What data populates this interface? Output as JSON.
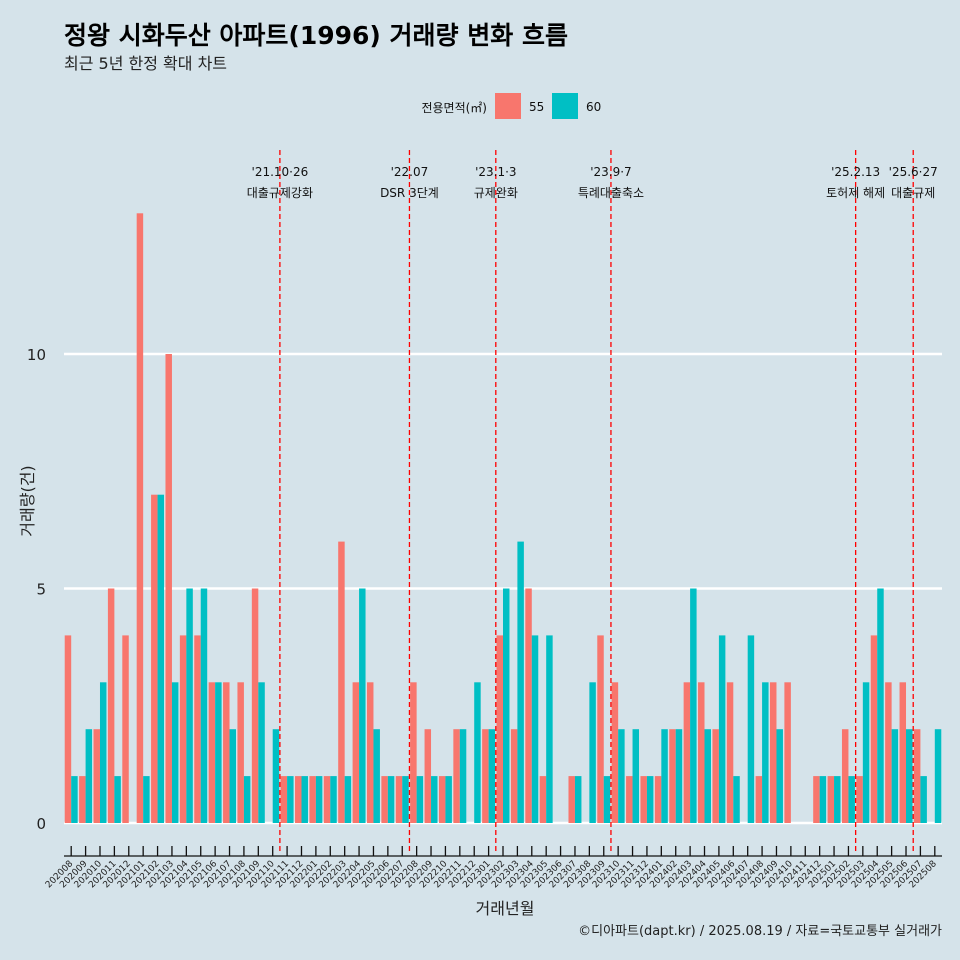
{
  "chart_data": {
    "type": "bar",
    "title": "정왕 시화두산 아파트(1996) 거래량 변화 흐름",
    "subtitle": "최근 5년 한정 확대 차트",
    "xlabel": "거래년월",
    "ylabel": "거래량(건)",
    "ylim": [
      0,
      14
    ],
    "yticks": [
      0,
      5,
      10
    ],
    "legend_title": "전용면적(㎡)",
    "legend_position": "top",
    "colors": {
      "55": "#f8766d",
      "60": "#00bfc4"
    },
    "caption": "©디아파트(dapt.kr) / 2025.08.19 / 자료=국토교통부 실거래가",
    "categories": [
      "202008",
      "202009",
      "202010",
      "202011",
      "202012",
      "202101",
      "202102",
      "202103",
      "202104",
      "202105",
      "202106",
      "202107",
      "202108",
      "202109",
      "202110",
      "202111",
      "202112",
      "202201",
      "202202",
      "202203",
      "202204",
      "202205",
      "202206",
      "202207",
      "202208",
      "202209",
      "202210",
      "202211",
      "202212",
      "202301",
      "202302",
      "202303",
      "202304",
      "202305",
      "202306",
      "202307",
      "202308",
      "202309",
      "202310",
      "202311",
      "202312",
      "202401",
      "202402",
      "202403",
      "202404",
      "202405",
      "202406",
      "202407",
      "202408",
      "202409",
      "202410",
      "202411",
      "202412",
      "202501",
      "202502",
      "202503",
      "202504",
      "202505",
      "202506",
      "202507",
      "202508"
    ],
    "series": [
      {
        "name": "55",
        "values": [
          4,
          1,
          2,
          5,
          4,
          13,
          7,
          10,
          4,
          4,
          3,
          3,
          3,
          5,
          0,
          1,
          1,
          1,
          1,
          6,
          3,
          3,
          1,
          1,
          3,
          2,
          1,
          2,
          0,
          2,
          4,
          2,
          5,
          1,
          0,
          1,
          0,
          4,
          3,
          1,
          1,
          1,
          2,
          3,
          3,
          2,
          3,
          0,
          1,
          3,
          3,
          0,
          1,
          1,
          2,
          1,
          4,
          3,
          3,
          2,
          0
        ]
      },
      {
        "name": "60",
        "values": [
          1,
          2,
          3,
          1,
          0,
          1,
          7,
          3,
          5,
          5,
          3,
          2,
          1,
          3,
          2,
          1,
          1,
          1,
          1,
          1,
          5,
          2,
          1,
          1,
          1,
          1,
          1,
          2,
          3,
          2,
          5,
          6,
          4,
          4,
          0,
          1,
          3,
          1,
          2,
          2,
          1,
          2,
          2,
          5,
          2,
          4,
          1,
          4,
          3,
          2,
          0,
          0,
          1,
          1,
          1,
          3,
          5,
          2,
          2,
          1,
          2
        ]
      }
    ],
    "annotations": [
      {
        "after": "202110",
        "date": "'21.10·26",
        "label": "대출규제강화"
      },
      {
        "after": "202207",
        "date": "'22.07",
        "label": "DSR 3단계"
      },
      {
        "after": "202301",
        "date": "'23.1·3",
        "label": "규제완화"
      },
      {
        "after": "202309",
        "date": "'23.9·7",
        "label": "특례대출축소"
      },
      {
        "after": "202502",
        "date": "'25.2.13",
        "label": "토허제 해제"
      },
      {
        "after": "202506",
        "date": "'25.6·27",
        "label": "대출규제"
      }
    ]
  }
}
